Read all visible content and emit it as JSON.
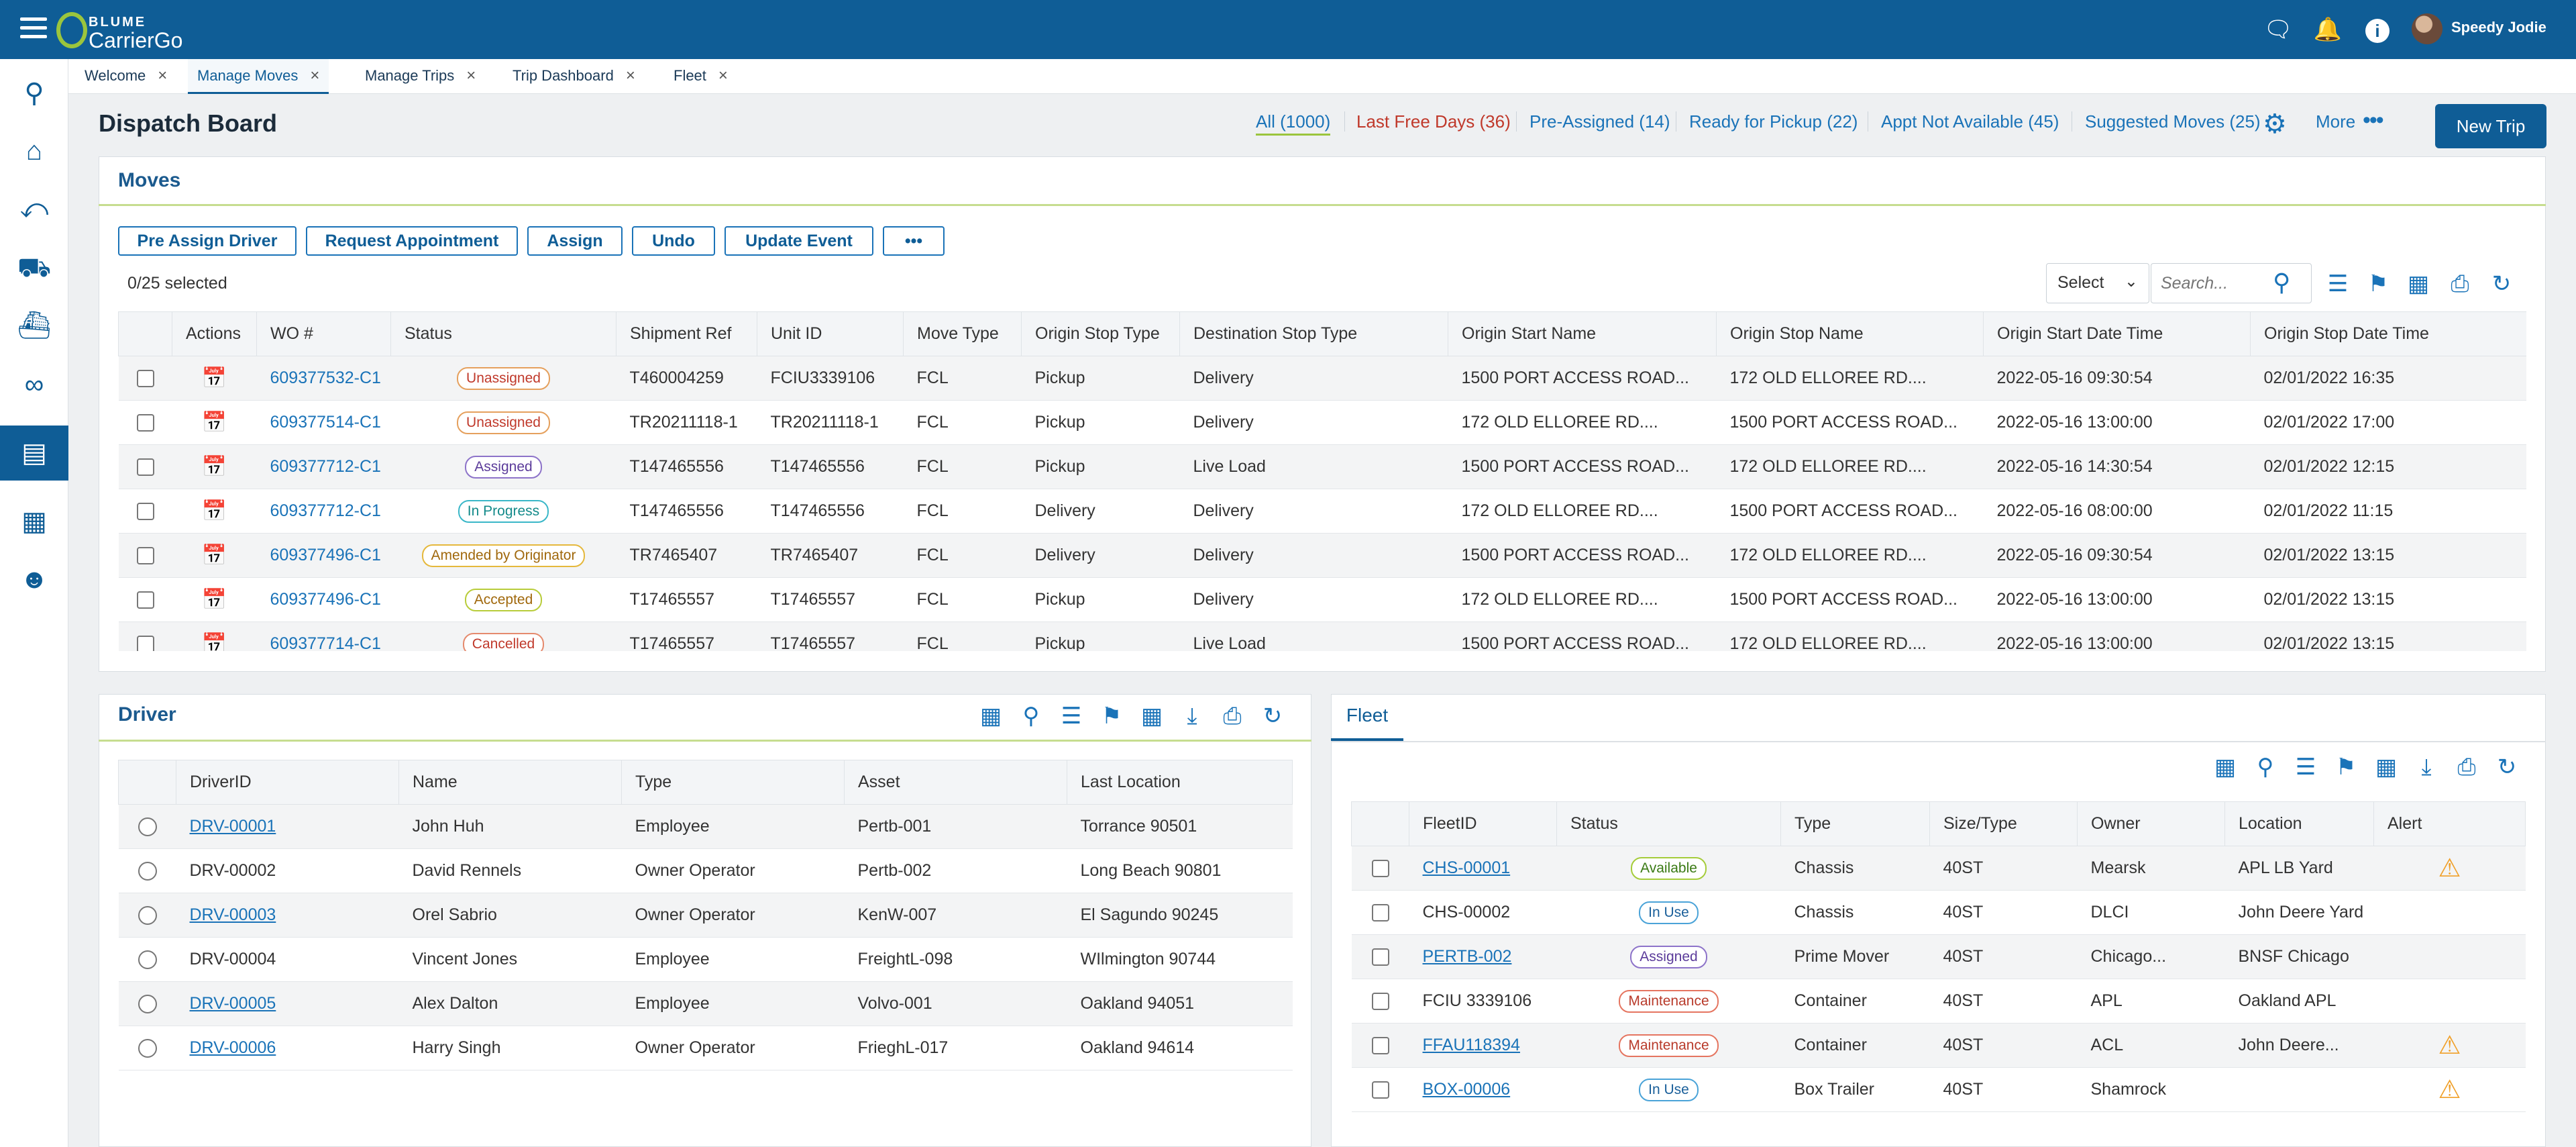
{
  "app": {
    "brand_top": "BLUME",
    "brand_bottom": "CarrierGo",
    "user_name": "Speedy Jodie"
  },
  "icons": {
    "menu": "hamburger-menu-icon",
    "chat": "chat-icon",
    "bell": "bell-icon",
    "info": "info-icon",
    "sidebar": [
      "search-icon",
      "home-icon",
      "route-icon",
      "truck-icon",
      "ship-icon",
      "link-icon",
      "dispatch-board-icon",
      "map-icon",
      "user-icon"
    ]
  },
  "tabs": [
    {
      "label": "Welcome"
    },
    {
      "label": "Manage Moves"
    },
    {
      "label": "Manage Trips"
    },
    {
      "label": "Trip Dashboard"
    },
    {
      "label": "Fleet"
    }
  ],
  "header": {
    "title": "Dispatch Board",
    "filters": [
      {
        "label": "All (1000)"
      },
      {
        "label": "Last Free Days (36)"
      },
      {
        "label": "Pre-Assigned (14)"
      },
      {
        "label": "Ready for Pickup (22)"
      },
      {
        "label": "Appt Not Available (45)"
      },
      {
        "label": "Suggested Moves (25)"
      }
    ],
    "more_label": "More",
    "new_trip_label": "New Trip"
  },
  "moves": {
    "title": "Moves",
    "buttons": [
      "Pre Assign Driver",
      "Request Appointment",
      "Assign",
      "Undo",
      "Update Event",
      "•••"
    ],
    "selected_text": "0/25 selected",
    "select_value": "Select",
    "search_placeholder": "Search...",
    "columns": [
      "Actions",
      "WO #",
      "Status",
      "Shipment Ref",
      "Unit ID",
      "Move Type",
      "Origin Stop Type",
      "Destination Stop Type",
      "Origin Start Name",
      "Origin Stop Name",
      "Origin Start Date Time",
      "Origin Stop Date Time"
    ],
    "rows": [
      {
        "wo": "609377532-C1",
        "status": "Unassigned",
        "ship": "T460004259",
        "unit": "FCIU3339106",
        "move": "FCL",
        "ostop": "Pickup",
        "dstop": "Delivery",
        "ostart": "1500 PORT ACCESS ROAD...",
        "ostopname": "172 OLD ELLOREE RD....",
        "sdt": "2022-05-16 09:30:54",
        "odt": "02/01/2022  16:35"
      },
      {
        "wo": "609377514-C1",
        "status": "Unassigned",
        "ship": "TR20211118-1",
        "unit": "TR20211118-1",
        "move": "FCL",
        "ostop": "Pickup",
        "dstop": "Delivery",
        "ostart": "172 OLD ELLOREE RD....",
        "ostopname": "1500 PORT ACCESS ROAD...",
        "sdt": "2022-05-16 13:00:00",
        "odt": "02/01/2022  17:00"
      },
      {
        "wo": "609377712-C1",
        "status": "Assigned",
        "ship": "T147465556",
        "unit": "T147465556",
        "move": "FCL",
        "ostop": "Pickup",
        "dstop": "Live Load",
        "ostart": "1500 PORT ACCESS ROAD...",
        "ostopname": "172 OLD ELLOREE RD....",
        "sdt": "2022-05-16 14:30:54",
        "odt": "02/01/2022  12:15"
      },
      {
        "wo": "609377712-C1",
        "status": "In Progress",
        "ship": "T147465556",
        "unit": "T147465556",
        "move": "FCL",
        "ostop": "Delivery",
        "dstop": "Delivery",
        "ostart": "172 OLD ELLOREE RD....",
        "ostopname": "1500 PORT ACCESS ROAD...",
        "sdt": "2022-05-16 08:00:00",
        "odt": "02/01/2022  11:15"
      },
      {
        "wo": "609377496-C1",
        "status": "Amended by Originator",
        "ship": "TR7465407",
        "unit": "TR7465407",
        "move": "FCL",
        "ostop": "Delivery",
        "dstop": "Delivery",
        "ostart": "1500 PORT ACCESS ROAD...",
        "ostopname": "172 OLD ELLOREE RD....",
        "sdt": "2022-05-16 09:30:54",
        "odt": "02/01/2022  13:15"
      },
      {
        "wo": "609377496-C1",
        "status": "Accepted",
        "ship": "T17465557",
        "unit": "T17465557",
        "move": "FCL",
        "ostop": "Pickup",
        "dstop": "Delivery",
        "ostart": "172 OLD ELLOREE RD....",
        "ostopname": "1500 PORT ACCESS ROAD...",
        "sdt": "2022-05-16 13:00:00",
        "odt": "02/01/2022  13:15"
      },
      {
        "wo": "609377714-C1",
        "status": "Cancelled",
        "ship": "T17465557",
        "unit": "T17465557",
        "move": "FCL",
        "ostop": "Pickup",
        "dstop": "Live Load",
        "ostart": "1500 PORT ACCESS ROAD...",
        "ostopname": "172 OLD ELLOREE RD....",
        "sdt": "2022-05-16 13:00:00",
        "odt": "02/01/2022  13:15"
      }
    ]
  },
  "driver": {
    "title": "Driver",
    "columns": [
      "DriverID",
      "Name",
      "Type",
      "Asset",
      "Last Location"
    ],
    "rows": [
      {
        "id": "DRV-00001",
        "link": true,
        "name": "John Huh",
        "type": "Employee",
        "asset": "Pertb-001",
        "loc": "Torrance  90501"
      },
      {
        "id": "DRV-00002",
        "link": false,
        "name": "David Rennels",
        "type": "Owner Operator",
        "asset": "Pertb-002",
        "loc": "Long Beach 90801"
      },
      {
        "id": "DRV-00003",
        "link": true,
        "name": "Orel Sabrio",
        "type": "Owner Operator",
        "asset": "KenW-007",
        "loc": "El Sagundo 90245"
      },
      {
        "id": "DRV-00004",
        "link": false,
        "name": "Vincent Jones",
        "type": "Employee",
        "asset": "FreightL-098",
        "loc": "WIlmington  90744"
      },
      {
        "id": "DRV-00005",
        "link": true,
        "name": "Alex Dalton",
        "type": "Employee",
        "asset": "Volvo-001",
        "loc": "Oakland 94051"
      },
      {
        "id": "DRV-00006",
        "link": true,
        "name": "Harry Singh",
        "type": "Owner Operator",
        "asset": "FrieghL-017",
        "loc": "Oakland  94614"
      }
    ]
  },
  "fleet": {
    "title": "Fleet",
    "columns": [
      "FleetID",
      "Status",
      "Type",
      "Size/Type",
      "Owner",
      "Location",
      "Alert"
    ],
    "rows": [
      {
        "id": "CHS-00001",
        "link": true,
        "status": "Available",
        "type": "Chassis",
        "size": "40ST",
        "owner": "Mearsk",
        "loc": "APL LB Yard",
        "alert": true
      },
      {
        "id": "CHS-00002",
        "link": false,
        "status": "In Use",
        "type": "Chassis",
        "size": "40ST",
        "owner": "DLCI",
        "loc": "John Deere Yard",
        "alert": false
      },
      {
        "id": "PERTB-002",
        "link": true,
        "status": "Assigned",
        "type": "Prime Mover",
        "size": "40ST",
        "owner": "Chicago...",
        "loc": "BNSF Chicago",
        "alert": false
      },
      {
        "id": "FCIU 3339106",
        "link": false,
        "status": "Maintenance",
        "type": "Container",
        "size": "40ST",
        "owner": "APL",
        "loc": "Oakland APL",
        "alert": false
      },
      {
        "id": "FFAU118394",
        "link": true,
        "status": "Maintenance",
        "type": "Container",
        "size": "40ST",
        "owner": "ACL",
        "loc": "John Deere...",
        "alert": true
      },
      {
        "id": "BOX-00006",
        "link": true,
        "status": "In Use",
        "type": "Box Trailer",
        "size": "40ST",
        "owner": "Shamrock",
        "loc": "",
        "alert": true
      }
    ]
  }
}
